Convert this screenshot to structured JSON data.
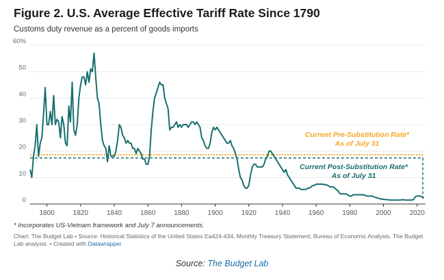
{
  "title": "Figure 2. U.S. Average Effective Tariff Rate Since 1790",
  "subtitle": "Customs duty revenue as a percent of goods imports",
  "footnote": "* Incorporates US-Vietnam framework and July 7 announcements.",
  "credit": {
    "text": "Chart: The Budget Lab • Source: Historical Statistics of the United States Ea424-434, Monthly Treasury Statement, Bureau of Economic Analysis, The Budget Lab analysis. • Created with",
    "tool": "Datawrapper"
  },
  "source": {
    "prefix": "Source:",
    "name": "The Budget Lab"
  },
  "colors": {
    "series": "#176e6e",
    "pre_rate": "#f5a623",
    "post_rate": "#176e6e"
  },
  "chart_data": {
    "type": "line",
    "xlim": [
      1790,
      2025
    ],
    "ylim": [
      0,
      60
    ],
    "x_ticks": [
      1800,
      1820,
      1840,
      1860,
      1880,
      1900,
      1920,
      1940,
      1960,
      1980,
      2000,
      2020
    ],
    "y_ticks": [
      {
        "value": 0,
        "label": "0"
      },
      {
        "value": 10,
        "label": "10"
      },
      {
        "value": 20,
        "label": "20"
      },
      {
        "value": 30,
        "label": "30"
      },
      {
        "value": 40,
        "label": "40"
      },
      {
        "value": 50,
        "label": "50"
      },
      {
        "value": 60,
        "label": "60%"
      }
    ],
    "grid": "horizontal",
    "series": [
      {
        "points": [
          [
            1790,
            13
          ],
          [
            1791,
            10
          ],
          [
            1792,
            18
          ],
          [
            1793,
            22
          ],
          [
            1794,
            30
          ],
          [
            1795,
            18
          ],
          [
            1796,
            23
          ],
          [
            1797,
            25
          ],
          [
            1798,
            34
          ],
          [
            1799,
            44
          ],
          [
            1800,
            30
          ],
          [
            1801,
            30
          ],
          [
            1802,
            35
          ],
          [
            1803,
            30
          ],
          [
            1804,
            41
          ],
          [
            1805,
            30
          ],
          [
            1806,
            32
          ],
          [
            1807,
            31
          ],
          [
            1808,
            25
          ],
          [
            1809,
            33
          ],
          [
            1810,
            30
          ],
          [
            1811,
            23
          ],
          [
            1812,
            22
          ],
          [
            1813,
            37
          ],
          [
            1814,
            31
          ],
          [
            1815,
            46
          ],
          [
            1816,
            28
          ],
          [
            1817,
            26
          ],
          [
            1818,
            30
          ],
          [
            1819,
            40
          ],
          [
            1820,
            45
          ],
          [
            1821,
            48
          ],
          [
            1822,
            48
          ],
          [
            1823,
            45
          ],
          [
            1824,
            50
          ],
          [
            1825,
            46
          ],
          [
            1826,
            51
          ],
          [
            1827,
            50
          ],
          [
            1828,
            57
          ],
          [
            1829,
            48
          ],
          [
            1830,
            40
          ],
          [
            1831,
            38
          ],
          [
            1832,
            30
          ],
          [
            1833,
            24
          ],
          [
            1834,
            22
          ],
          [
            1835,
            21
          ],
          [
            1836,
            16
          ],
          [
            1837,
            22
          ],
          [
            1838,
            18
          ],
          [
            1839,
            18
          ],
          [
            1840,
            18
          ],
          [
            1841,
            20
          ],
          [
            1842,
            24
          ],
          [
            1843,
            30
          ],
          [
            1844,
            29
          ],
          [
            1845,
            26
          ],
          [
            1846,
            25
          ],
          [
            1847,
            23
          ],
          [
            1848,
            24
          ],
          [
            1849,
            23
          ],
          [
            1850,
            23
          ],
          [
            1851,
            21
          ],
          [
            1852,
            21
          ],
          [
            1853,
            19
          ],
          [
            1854,
            21
          ],
          [
            1855,
            20
          ],
          [
            1856,
            19
          ],
          [
            1857,
            17
          ],
          [
            1858,
            17
          ],
          [
            1859,
            15
          ],
          [
            1860,
            15
          ],
          [
            1861,
            18
          ],
          [
            1862,
            28
          ],
          [
            1863,
            35
          ],
          [
            1864,
            40
          ],
          [
            1865,
            42
          ],
          [
            1866,
            44
          ],
          [
            1867,
            46
          ],
          [
            1868,
            45
          ],
          [
            1869,
            45
          ],
          [
            1870,
            40
          ],
          [
            1871,
            38
          ],
          [
            1872,
            36
          ],
          [
            1873,
            28
          ],
          [
            1874,
            29
          ],
          [
            1875,
            29
          ],
          [
            1876,
            30
          ],
          [
            1877,
            31
          ],
          [
            1878,
            29
          ],
          [
            1879,
            30
          ],
          [
            1880,
            29
          ],
          [
            1881,
            30
          ],
          [
            1882,
            30
          ],
          [
            1883,
            30
          ],
          [
            1884,
            29
          ],
          [
            1885,
            30
          ],
          [
            1886,
            31
          ],
          [
            1887,
            31
          ],
          [
            1888,
            30
          ],
          [
            1889,
            31
          ],
          [
            1890,
            30
          ],
          [
            1891,
            29
          ],
          [
            1892,
            25
          ],
          [
            1893,
            24
          ],
          [
            1894,
            22
          ],
          [
            1895,
            21
          ],
          [
            1896,
            21
          ],
          [
            1897,
            23
          ],
          [
            1898,
            27
          ],
          [
            1899,
            29
          ],
          [
            1900,
            28
          ],
          [
            1901,
            29
          ],
          [
            1902,
            28
          ],
          [
            1903,
            27
          ],
          [
            1904,
            26
          ],
          [
            1905,
            25
          ],
          [
            1906,
            24
          ],
          [
            1907,
            23
          ],
          [
            1908,
            23
          ],
          [
            1909,
            24
          ],
          [
            1910,
            22
          ],
          [
            1911,
            21
          ],
          [
            1912,
            19
          ],
          [
            1913,
            17
          ],
          [
            1914,
            13
          ],
          [
            1915,
            10
          ],
          [
            1916,
            9
          ],
          [
            1917,
            7
          ],
          [
            1918,
            6
          ],
          [
            1919,
            6
          ],
          [
            1920,
            7
          ],
          [
            1921,
            11
          ],
          [
            1922,
            14
          ],
          [
            1923,
            15
          ],
          [
            1924,
            15
          ],
          [
            1925,
            14
          ],
          [
            1926,
            14
          ],
          [
            1927,
            14
          ],
          [
            1928,
            14
          ],
          [
            1929,
            15
          ],
          [
            1930,
            17
          ],
          [
            1931,
            18
          ],
          [
            1932,
            20
          ],
          [
            1933,
            20
          ],
          [
            1934,
            19
          ],
          [
            1935,
            18
          ],
          [
            1936,
            17
          ],
          [
            1937,
            16
          ],
          [
            1938,
            15
          ],
          [
            1939,
            14
          ],
          [
            1940,
            13
          ],
          [
            1941,
            12
          ],
          [
            1942,
            13
          ],
          [
            1943,
            11
          ],
          [
            1944,
            10
          ],
          [
            1945,
            9
          ],
          [
            1946,
            8
          ],
          [
            1947,
            7
          ],
          [
            1948,
            6
          ],
          [
            1949,
            6
          ],
          [
            1950,
            6
          ],
          [
            1951,
            5.5
          ],
          [
            1952,
            5.5
          ],
          [
            1953,
            5.5
          ],
          [
            1954,
            5.5
          ],
          [
            1955,
            6
          ],
          [
            1956,
            6
          ],
          [
            1957,
            6.5
          ],
          [
            1958,
            7
          ],
          [
            1959,
            7
          ],
          [
            1960,
            7.5
          ],
          [
            1961,
            7.5
          ],
          [
            1962,
            7.5
          ],
          [
            1963,
            7.5
          ],
          [
            1964,
            7.5
          ],
          [
            1965,
            7.3
          ],
          [
            1966,
            7.3
          ],
          [
            1967,
            7
          ],
          [
            1968,
            6.5
          ],
          [
            1969,
            6.5
          ],
          [
            1970,
            6.5
          ],
          [
            1971,
            6
          ],
          [
            1972,
            5.5
          ],
          [
            1973,
            5
          ],
          [
            1974,
            4
          ],
          [
            1975,
            3.8
          ],
          [
            1976,
            3.8
          ],
          [
            1977,
            3.8
          ],
          [
            1978,
            3.8
          ],
          [
            1979,
            3.3
          ],
          [
            1980,
            3
          ],
          [
            1981,
            3
          ],
          [
            1982,
            3.5
          ],
          [
            1983,
            3.5
          ],
          [
            1984,
            3.5
          ],
          [
            1985,
            3.5
          ],
          [
            1986,
            3.5
          ],
          [
            1987,
            3.5
          ],
          [
            1988,
            3.5
          ],
          [
            1989,
            3.3
          ],
          [
            1990,
            3
          ],
          [
            1991,
            3
          ],
          [
            1992,
            3
          ],
          [
            1993,
            3
          ],
          [
            1994,
            2.8
          ],
          [
            1995,
            2.5
          ],
          [
            1996,
            2.4
          ],
          [
            1997,
            2.2
          ],
          [
            1998,
            2
          ],
          [
            1999,
            1.8
          ],
          [
            2000,
            1.8
          ],
          [
            2001,
            1.7
          ],
          [
            2002,
            1.6
          ],
          [
            2003,
            1.6
          ],
          [
            2004,
            1.5
          ],
          [
            2005,
            1.5
          ],
          [
            2006,
            1.5
          ],
          [
            2007,
            1.5
          ],
          [
            2008,
            1.5
          ],
          [
            2009,
            1.5
          ],
          [
            2010,
            1.5
          ],
          [
            2011,
            1.6
          ],
          [
            2012,
            1.6
          ],
          [
            2013,
            1.5
          ],
          [
            2014,
            1.5
          ],
          [
            2015,
            1.5
          ],
          [
            2016,
            1.5
          ],
          [
            2017,
            1.5
          ],
          [
            2018,
            1.8
          ],
          [
            2019,
            2.8
          ],
          [
            2020,
            3
          ],
          [
            2021,
            3
          ],
          [
            2022,
            3
          ],
          [
            2023,
            2.7
          ],
          [
            2024,
            2.3
          ]
        ]
      }
    ],
    "reference_lines": [
      {
        "label_line1": "Current Pre-Substitution Rate*",
        "label_line2": "As of July 31",
        "value": 18.6,
        "style": "dotted",
        "color": "#f5a623"
      },
      {
        "label_line1": "Current Post-Substitution Rate*",
        "label_line2": "As of July 31",
        "value": 17.4,
        "style": "dashed",
        "color": "#176e6e"
      }
    ]
  }
}
